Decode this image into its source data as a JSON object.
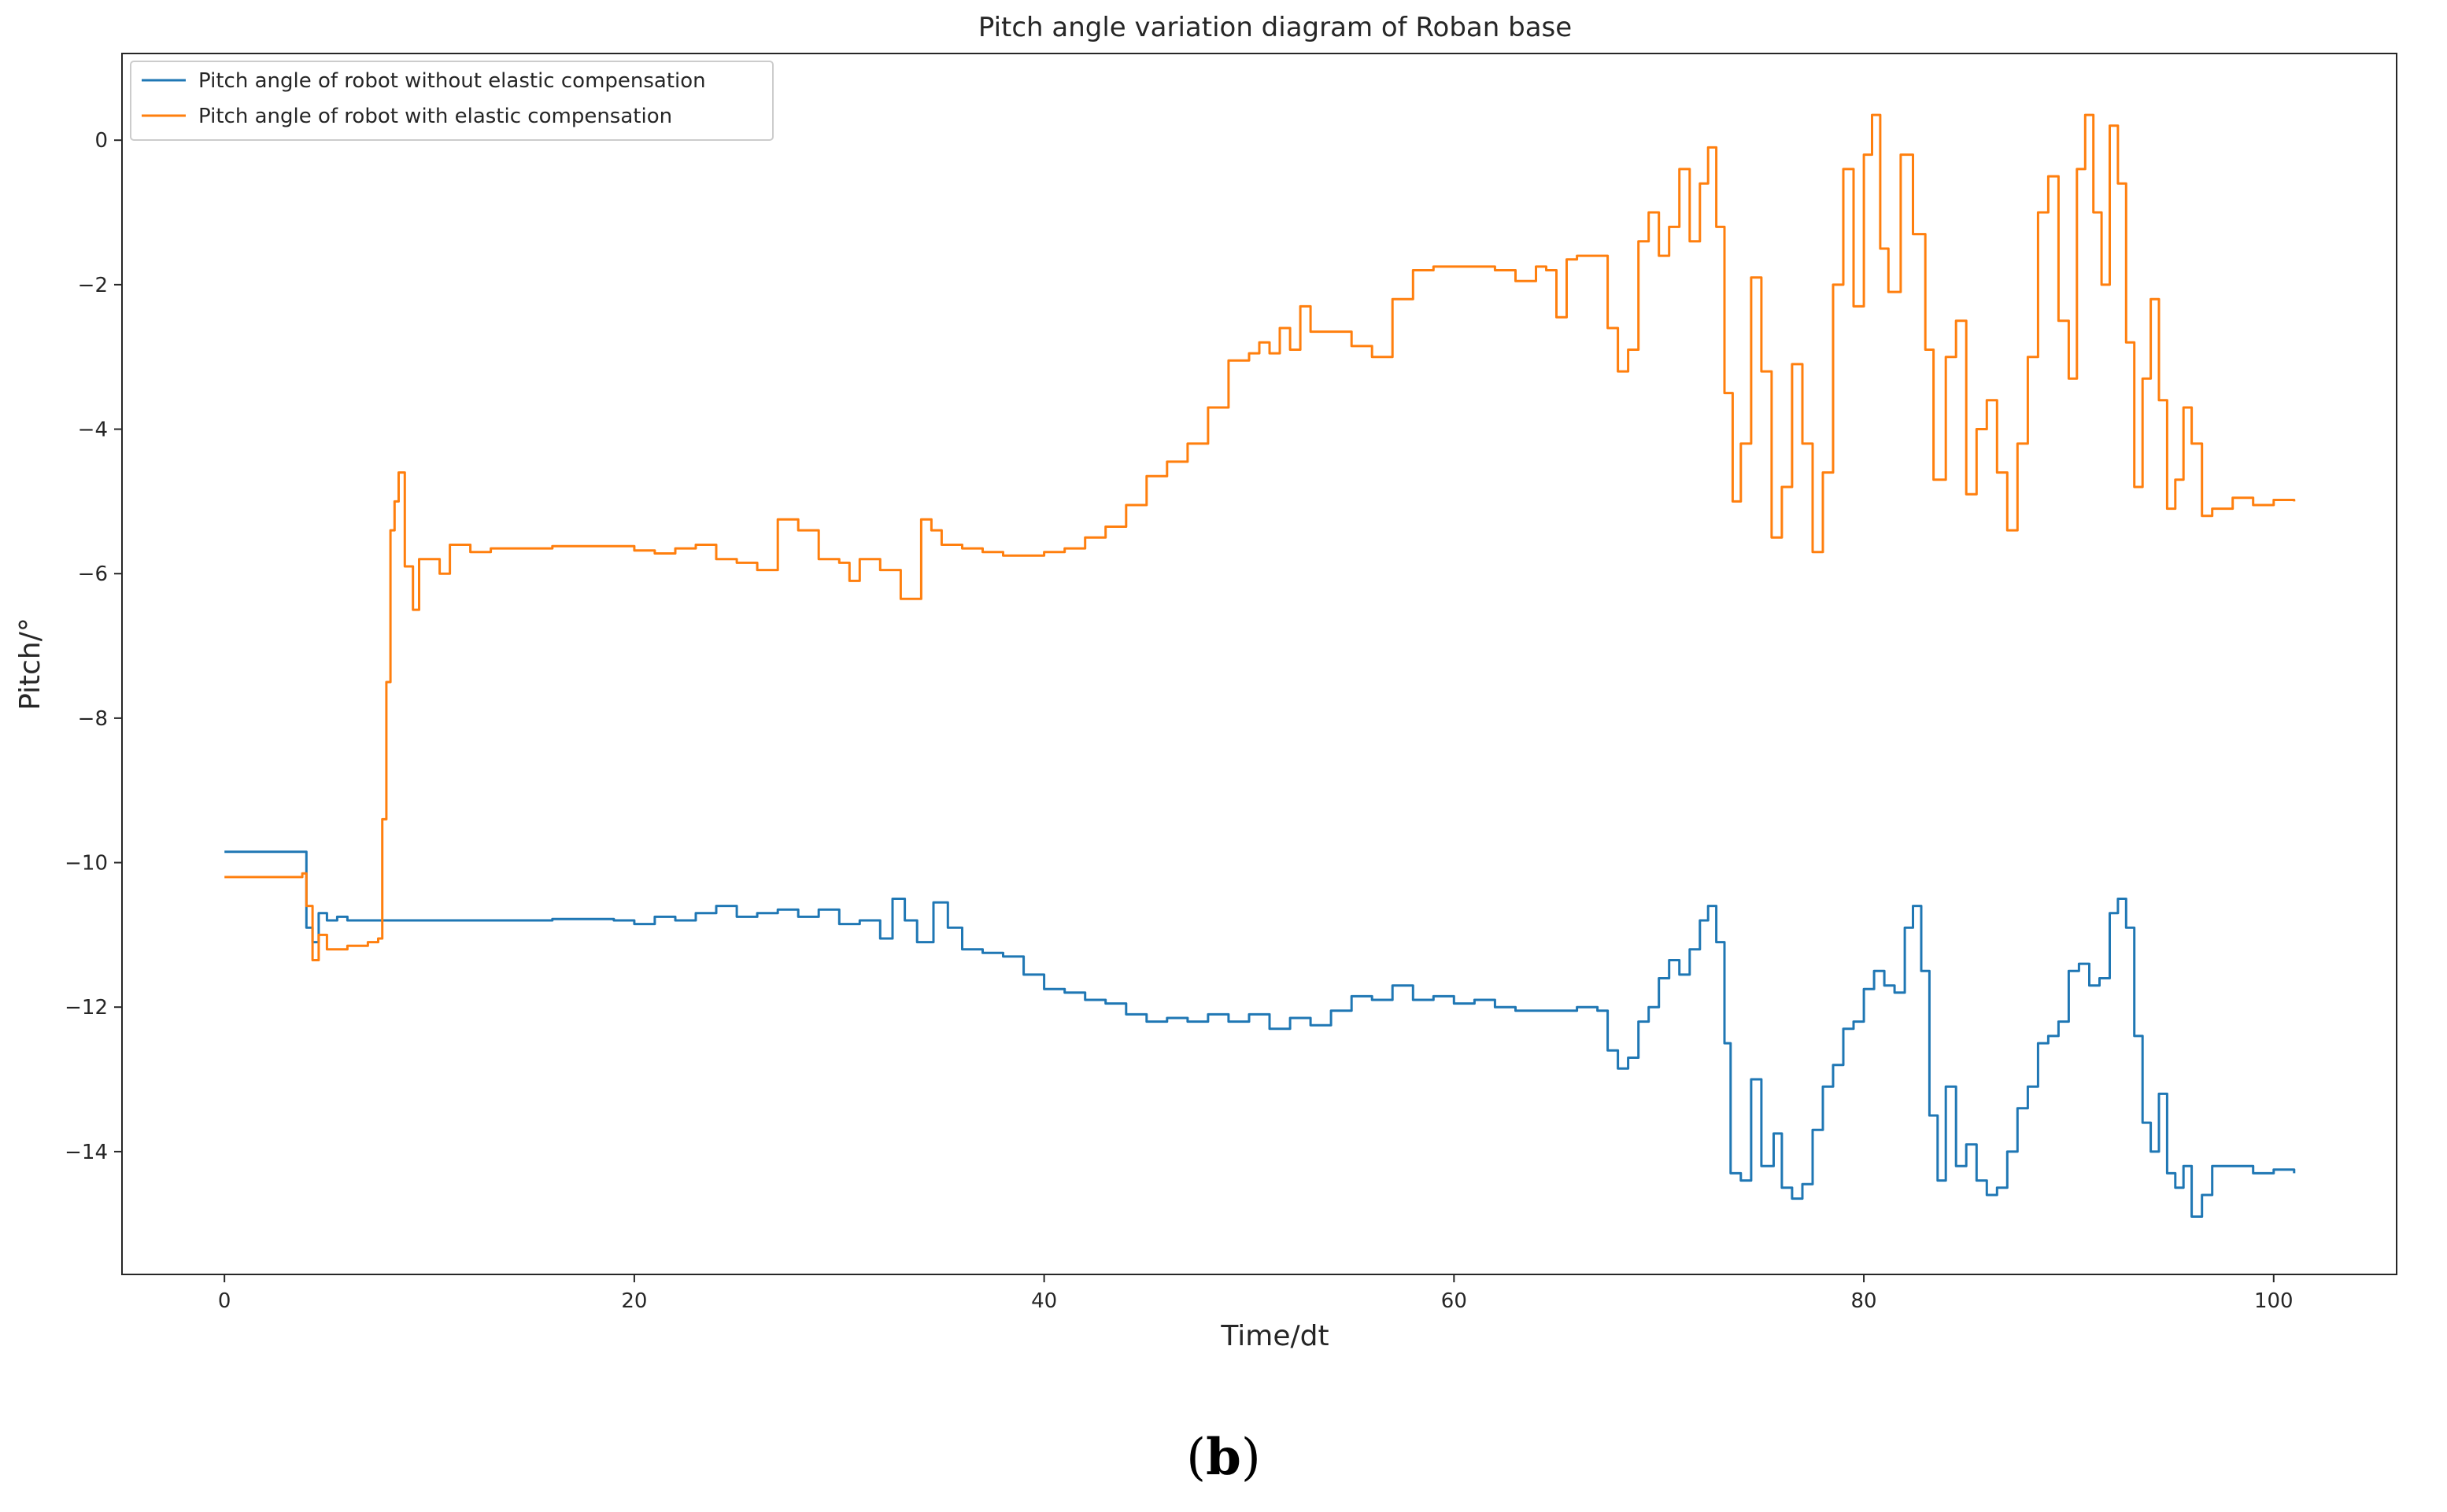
{
  "panel_label": {
    "open": "(",
    "letter": "b",
    "close": ")"
  },
  "chart_data": {
    "type": "line",
    "title": "Pitch angle variation diagram of Roban base",
    "xlabel": "Time/dt",
    "ylabel": "Pitch/°",
    "xlim": [
      -5,
      106
    ],
    "ylim": [
      -15.7,
      1.2
    ],
    "xticks": [
      0,
      20,
      40,
      60,
      80,
      100
    ],
    "yticks": [
      0,
      -2,
      -4,
      -6,
      -8,
      -10,
      -12,
      -14
    ],
    "ytick_labels": [
      "0",
      "−2",
      "−4",
      "−6",
      "−8",
      "−10",
      "−12",
      "−14"
    ],
    "grid": false,
    "legend": {
      "location": "upper-left"
    },
    "series": [
      {
        "name": "Pitch angle of robot without elastic compensation",
        "color": "#1f77b4",
        "points": [
          [
            0,
            -9.85
          ],
          [
            3.8,
            -9.85
          ],
          [
            4.0,
            -10.9
          ],
          [
            4.3,
            -11.1
          ],
          [
            4.6,
            -10.7
          ],
          [
            5.0,
            -10.8
          ],
          [
            5.5,
            -10.75
          ],
          [
            6.0,
            -10.8
          ],
          [
            7.0,
            -10.8
          ],
          [
            8.0,
            -10.8
          ],
          [
            10,
            -10.8
          ],
          [
            12,
            -10.8
          ],
          [
            14,
            -10.8
          ],
          [
            16,
            -10.78
          ],
          [
            18,
            -10.78
          ],
          [
            19,
            -10.8
          ],
          [
            20,
            -10.85
          ],
          [
            21,
            -10.75
          ],
          [
            22,
            -10.8
          ],
          [
            23,
            -10.7
          ],
          [
            24,
            -10.6
          ],
          [
            25,
            -10.75
          ],
          [
            26,
            -10.7
          ],
          [
            27,
            -10.65
          ],
          [
            28,
            -10.75
          ],
          [
            29,
            -10.65
          ],
          [
            30,
            -10.85
          ],
          [
            31,
            -10.8
          ],
          [
            32,
            -11.05
          ],
          [
            32.6,
            -10.5
          ],
          [
            33.2,
            -10.8
          ],
          [
            33.8,
            -11.1
          ],
          [
            34.6,
            -10.55
          ],
          [
            35.3,
            -10.9
          ],
          [
            36,
            -11.2
          ],
          [
            37,
            -11.25
          ],
          [
            38,
            -11.3
          ],
          [
            39,
            -11.55
          ],
          [
            40,
            -11.75
          ],
          [
            41,
            -11.8
          ],
          [
            42,
            -11.9
          ],
          [
            43,
            -11.95
          ],
          [
            44,
            -12.1
          ],
          [
            45,
            -12.2
          ],
          [
            46,
            -12.15
          ],
          [
            47,
            -12.2
          ],
          [
            48,
            -12.1
          ],
          [
            49,
            -12.2
          ],
          [
            50,
            -12.1
          ],
          [
            51,
            -12.3
          ],
          [
            52,
            -12.15
          ],
          [
            53,
            -12.25
          ],
          [
            54,
            -12.05
          ],
          [
            55,
            -11.85
          ],
          [
            56,
            -11.9
          ],
          [
            57,
            -11.7
          ],
          [
            58,
            -11.9
          ],
          [
            59,
            -11.85
          ],
          [
            60,
            -11.95
          ],
          [
            61,
            -11.9
          ],
          [
            62,
            -12.0
          ],
          [
            63,
            -12.05
          ],
          [
            64,
            -12.05
          ],
          [
            65,
            -12.05
          ],
          [
            66,
            -12.0
          ],
          [
            67,
            -12.05
          ],
          [
            67.5,
            -12.6
          ],
          [
            68.0,
            -12.85
          ],
          [
            68.5,
            -12.7
          ],
          [
            69.0,
            -12.2
          ],
          [
            69.5,
            -12.0
          ],
          [
            70.0,
            -11.6
          ],
          [
            70.5,
            -11.35
          ],
          [
            71.0,
            -11.55
          ],
          [
            71.5,
            -11.2
          ],
          [
            72.0,
            -10.8
          ],
          [
            72.4,
            -10.6
          ],
          [
            72.8,
            -11.1
          ],
          [
            73.2,
            -12.5
          ],
          [
            73.5,
            -14.3
          ],
          [
            74.0,
            -14.4
          ],
          [
            74.5,
            -13.0
          ],
          [
            75.0,
            -14.2
          ],
          [
            75.6,
            -13.75
          ],
          [
            76.0,
            -14.5
          ],
          [
            76.5,
            -14.65
          ],
          [
            77.0,
            -14.45
          ],
          [
            77.5,
            -13.7
          ],
          [
            78.0,
            -13.1
          ],
          [
            78.5,
            -12.8
          ],
          [
            79.0,
            -12.3
          ],
          [
            79.5,
            -12.2
          ],
          [
            80.0,
            -11.75
          ],
          [
            80.5,
            -11.5
          ],
          [
            81.0,
            -11.7
          ],
          [
            81.5,
            -11.8
          ],
          [
            82.0,
            -10.9
          ],
          [
            82.4,
            -10.6
          ],
          [
            82.8,
            -11.5
          ],
          [
            83.2,
            -13.5
          ],
          [
            83.6,
            -14.4
          ],
          [
            84.0,
            -13.1
          ],
          [
            84.5,
            -14.2
          ],
          [
            85.0,
            -13.9
          ],
          [
            85.5,
            -14.4
          ],
          [
            86.0,
            -14.6
          ],
          [
            86.5,
            -14.5
          ],
          [
            87.0,
            -14.0
          ],
          [
            87.5,
            -13.4
          ],
          [
            88.0,
            -13.1
          ],
          [
            88.5,
            -12.5
          ],
          [
            89.0,
            -12.4
          ],
          [
            89.5,
            -12.2
          ],
          [
            90.0,
            -11.5
          ],
          [
            90.5,
            -11.4
          ],
          [
            91.0,
            -11.7
          ],
          [
            91.5,
            -11.6
          ],
          [
            92.0,
            -10.7
          ],
          [
            92.4,
            -10.5
          ],
          [
            92.8,
            -10.9
          ],
          [
            93.2,
            -12.4
          ],
          [
            93.6,
            -13.6
          ],
          [
            94.0,
            -14.0
          ],
          [
            94.4,
            -13.2
          ],
          [
            94.8,
            -14.3
          ],
          [
            95.2,
            -14.5
          ],
          [
            95.6,
            -14.2
          ],
          [
            96.0,
            -14.9
          ],
          [
            96.5,
            -14.6
          ],
          [
            97.0,
            -14.2
          ],
          [
            98.0,
            -14.2
          ],
          [
            99.0,
            -14.3
          ],
          [
            100.0,
            -14.25
          ],
          [
            101.0,
            -14.3
          ]
        ]
      },
      {
        "name": "Pitch angle of robot with elastic compensation",
        "color": "#ff7f0e",
        "points": [
          [
            0,
            -10.2
          ],
          [
            2.0,
            -10.2
          ],
          [
            3.8,
            -10.15
          ],
          [
            4.0,
            -10.6
          ],
          [
            4.3,
            -11.35
          ],
          [
            4.6,
            -11.0
          ],
          [
            5.0,
            -11.2
          ],
          [
            6.0,
            -11.15
          ],
          [
            7.0,
            -11.1
          ],
          [
            7.5,
            -11.05
          ],
          [
            7.7,
            -9.4
          ],
          [
            7.9,
            -7.5
          ],
          [
            8.1,
            -5.4
          ],
          [
            8.3,
            -5.0
          ],
          [
            8.5,
            -4.6
          ],
          [
            8.8,
            -5.9
          ],
          [
            9.2,
            -6.5
          ],
          [
            9.5,
            -5.8
          ],
          [
            10.0,
            -5.8
          ],
          [
            10.5,
            -6.0
          ],
          [
            11.0,
            -5.6
          ],
          [
            12,
            -5.7
          ],
          [
            13,
            -5.65
          ],
          [
            14,
            -5.65
          ],
          [
            16,
            -5.62
          ],
          [
            18,
            -5.62
          ],
          [
            20,
            -5.68
          ],
          [
            21,
            -5.72
          ],
          [
            22,
            -5.65
          ],
          [
            23,
            -5.6
          ],
          [
            24,
            -5.8
          ],
          [
            25,
            -5.85
          ],
          [
            26,
            -5.95
          ],
          [
            27,
            -5.25
          ],
          [
            28,
            -5.4
          ],
          [
            29,
            -5.8
          ],
          [
            30,
            -5.85
          ],
          [
            30.5,
            -6.1
          ],
          [
            31,
            -5.8
          ],
          [
            32,
            -5.95
          ],
          [
            33,
            -6.35
          ],
          [
            34,
            -5.25
          ],
          [
            34.5,
            -5.4
          ],
          [
            35,
            -5.6
          ],
          [
            36,
            -5.65
          ],
          [
            37,
            -5.7
          ],
          [
            38,
            -5.75
          ],
          [
            39,
            -5.75
          ],
          [
            40,
            -5.7
          ],
          [
            41,
            -5.65
          ],
          [
            42,
            -5.5
          ],
          [
            43,
            -5.35
          ],
          [
            44,
            -5.05
          ],
          [
            45,
            -4.65
          ],
          [
            46,
            -4.45
          ],
          [
            47,
            -4.2
          ],
          [
            48,
            -3.7
          ],
          [
            49,
            -3.05
          ],
          [
            50,
            -2.95
          ],
          [
            50.5,
            -2.8
          ],
          [
            51,
            -2.95
          ],
          [
            51.5,
            -2.6
          ],
          [
            52,
            -2.9
          ],
          [
            52.5,
            -2.3
          ],
          [
            53,
            -2.65
          ],
          [
            54,
            -2.65
          ],
          [
            55,
            -2.85
          ],
          [
            56,
            -3.0
          ],
          [
            57,
            -2.2
          ],
          [
            58,
            -1.8
          ],
          [
            59,
            -1.75
          ],
          [
            60,
            -1.75
          ],
          [
            61,
            -1.75
          ],
          [
            62,
            -1.8
          ],
          [
            63,
            -1.95
          ],
          [
            64,
            -1.75
          ],
          [
            64.5,
            -1.8
          ],
          [
            65,
            -2.45
          ],
          [
            65.5,
            -1.65
          ],
          [
            66,
            -1.6
          ],
          [
            67,
            -1.6
          ],
          [
            67.5,
            -2.6
          ],
          [
            68.0,
            -3.2
          ],
          [
            68.5,
            -2.9
          ],
          [
            69.0,
            -1.4
          ],
          [
            69.5,
            -1.0
          ],
          [
            70.0,
            -1.6
          ],
          [
            70.5,
            -1.2
          ],
          [
            71.0,
            -0.4
          ],
          [
            71.5,
            -1.4
          ],
          [
            72.0,
            -0.6
          ],
          [
            72.4,
            -0.1
          ],
          [
            72.8,
            -1.2
          ],
          [
            73.2,
            -3.5
          ],
          [
            73.6,
            -5.0
          ],
          [
            74.0,
            -4.2
          ],
          [
            74.5,
            -1.9
          ],
          [
            75.0,
            -3.2
          ],
          [
            75.5,
            -5.5
          ],
          [
            76.0,
            -4.8
          ],
          [
            76.5,
            -3.1
          ],
          [
            77.0,
            -4.2
          ],
          [
            77.5,
            -5.7
          ],
          [
            78.0,
            -4.6
          ],
          [
            78.5,
            -2.0
          ],
          [
            79.0,
            -0.4
          ],
          [
            79.5,
            -2.3
          ],
          [
            80.0,
            -0.2
          ],
          [
            80.4,
            0.35
          ],
          [
            80.8,
            -1.5
          ],
          [
            81.2,
            -2.1
          ],
          [
            81.8,
            -0.2
          ],
          [
            82.4,
            -1.3
          ],
          [
            83.0,
            -2.9
          ],
          [
            83.4,
            -4.7
          ],
          [
            84.0,
            -3.0
          ],
          [
            84.5,
            -2.5
          ],
          [
            85.0,
            -4.9
          ],
          [
            85.5,
            -4.0
          ],
          [
            86.0,
            -3.6
          ],
          [
            86.5,
            -4.6
          ],
          [
            87.0,
            -5.4
          ],
          [
            87.5,
            -4.2
          ],
          [
            88.0,
            -3.0
          ],
          [
            88.5,
            -1.0
          ],
          [
            89.0,
            -0.5
          ],
          [
            89.5,
            -2.5
          ],
          [
            90.0,
            -3.3
          ],
          [
            90.4,
            -0.4
          ],
          [
            90.8,
            0.35
          ],
          [
            91.2,
            -1.0
          ],
          [
            91.6,
            -2.0
          ],
          [
            92.0,
            0.2
          ],
          [
            92.4,
            -0.6
          ],
          [
            92.8,
            -2.8
          ],
          [
            93.2,
            -4.8
          ],
          [
            93.6,
            -3.3
          ],
          [
            94.0,
            -2.2
          ],
          [
            94.4,
            -3.6
          ],
          [
            94.8,
            -5.1
          ],
          [
            95.2,
            -4.7
          ],
          [
            95.6,
            -3.7
          ],
          [
            96.0,
            -4.2
          ],
          [
            96.5,
            -5.2
          ],
          [
            97.0,
            -5.1
          ],
          [
            98.0,
            -4.95
          ],
          [
            99.0,
            -5.05
          ],
          [
            100.0,
            -4.98
          ],
          [
            101.0,
            -5.0
          ]
        ]
      }
    ]
  }
}
